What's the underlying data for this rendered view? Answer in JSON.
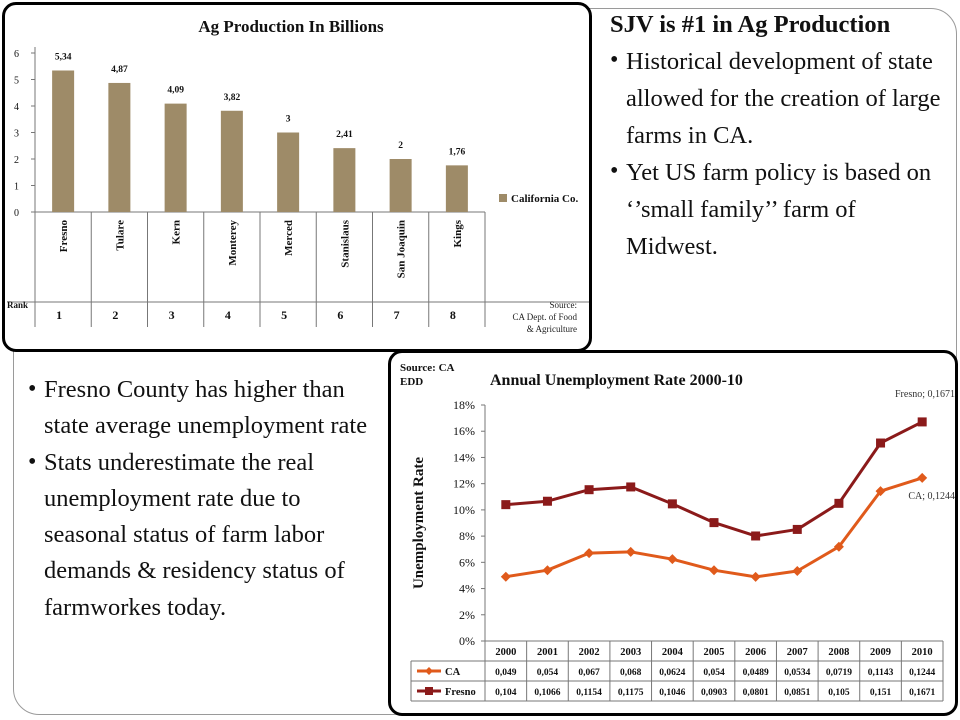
{
  "top_text": {
    "heading": "SJV is #1 in Ag Production",
    "bullets": [
      "Historical development of state allowed for the creation of large farms in CA.",
      "Yet US farm policy is based on ‘’small family’’ farm of Midwest."
    ]
  },
  "left_text": {
    "bullets": [
      "Fresno County has higher than state average unemployment rate",
      "Stats underestimate the real unemployment rate due to seasonal status of farm labor demands & residency status of farmworkes today."
    ]
  },
  "chart_data": [
    {
      "type": "bar",
      "title": "Ag Production In Billions",
      "categories": [
        "Fresno",
        "Tulare",
        "Kern",
        "Monterey",
        "Merced",
        "Stanislaus",
        "San Joaquin",
        "Kings"
      ],
      "series": [
        {
          "name": "California Co.",
          "values": [
            5.34,
            4.87,
            4.09,
            3.82,
            3,
            2.41,
            2,
            1.76
          ]
        }
      ],
      "data_labels": [
        "5,34",
        "4,87",
        "4,09",
        "3,82",
        "3",
        "2,41",
        "2",
        "1,76"
      ],
      "y_ticks": [
        "0",
        "1",
        "2",
        "3",
        "4",
        "5",
        "6"
      ],
      "ylim": [
        0,
        6
      ],
      "rank_label": "Rank",
      "ranks": [
        "1",
        "2",
        "3",
        "4",
        "5",
        "6",
        "7",
        "8"
      ],
      "source_lines": [
        "Source:",
        "CA Dept. of Food",
        "& Agriculture"
      ],
      "legend_position": "right",
      "colors": {
        "bar": "#9e8b68"
      }
    },
    {
      "type": "line",
      "title": "Annual Unemployment Rate 2000-10",
      "source_lines": [
        "Source: CA",
        "EDD"
      ],
      "ylabel": "Unemployment Rate",
      "categories": [
        "2000",
        "2001",
        "2002",
        "2003",
        "2004",
        "2005",
        "2006",
        "2007",
        "2008",
        "2009",
        "2010"
      ],
      "y_ticks": [
        "0%",
        "2%",
        "4%",
        "6%",
        "8%",
        "10%",
        "12%",
        "14%",
        "16%",
        "18%"
      ],
      "ylim": [
        0,
        0.18
      ],
      "series": [
        {
          "name": "CA",
          "values": [
            0.049,
            0.054,
            0.067,
            0.068,
            0.0624,
            0.054,
            0.0489,
            0.0534,
            0.0719,
            0.1143,
            0.1244
          ],
          "table_values": [
            "0,049",
            "0,054",
            "0,067",
            "0,068",
            "0,0624",
            "0,054",
            "0,0489",
            "0,0534",
            "0,0719",
            "0,1143",
            "0,1244"
          ],
          "end_label": "CA; 0,1244",
          "marker": "diamond",
          "color": "#e05a1b"
        },
        {
          "name": "Fresno",
          "values": [
            0.104,
            0.1066,
            0.1154,
            0.1175,
            0.1046,
            0.0903,
            0.0801,
            0.0851,
            0.105,
            0.151,
            0.1671
          ],
          "table_values": [
            "0,104",
            "0,1066",
            "0,1154",
            "0,1175",
            "0,1046",
            "0,0903",
            "0,0801",
            "0,0851",
            "0,105",
            "0,151",
            "0,1671"
          ],
          "end_label": "Fresno; 0,1671",
          "marker": "square",
          "color": "#8b1a1a"
        }
      ]
    }
  ]
}
